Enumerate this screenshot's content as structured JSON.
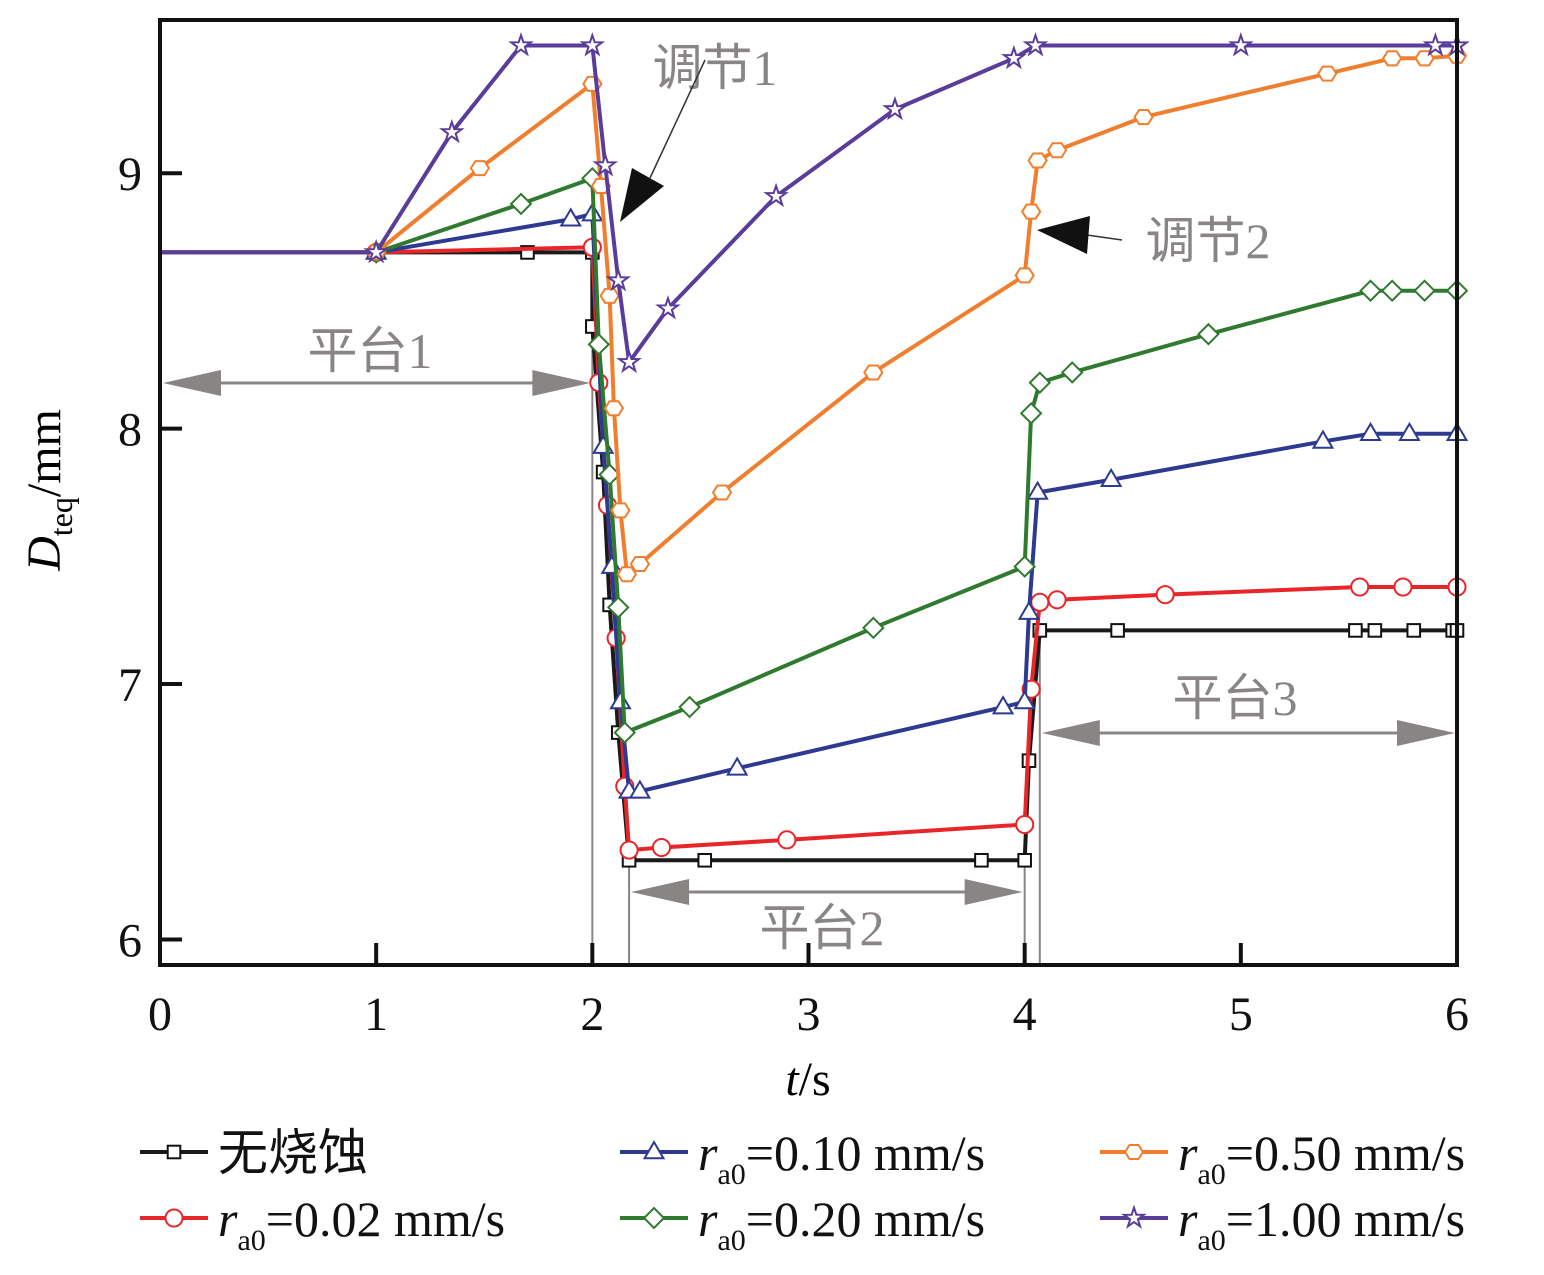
{
  "chart_data": {
    "type": "line",
    "xlabel_italic": "t",
    "xlabel_unit": "/s",
    "ylabel_main": "D",
    "ylabel_sub": "teq",
    "ylabel_unit": "/mm",
    "xlim": [
      0,
      6
    ],
    "ylim": [
      5.9,
      9.6
    ],
    "xticks": [
      "0",
      "1",
      "2",
      "3",
      "4",
      "5",
      "6"
    ],
    "yticks": [
      "6",
      "7",
      "8",
      "9"
    ],
    "grid": false,
    "legend_position": "bottom",
    "series": [
      {
        "name": "无烧蚀",
        "prefix": "",
        "sub": "",
        "value_label": "",
        "color": "#1a1a1a",
        "marker": "square",
        "points": [
          [
            0,
            8.69
          ],
          [
            1.7,
            8.69
          ],
          [
            2.0,
            8.69
          ],
          [
            2.0,
            8.4
          ],
          [
            2.05,
            7.83
          ],
          [
            2.08,
            7.31
          ],
          [
            2.12,
            6.81
          ],
          [
            2.17,
            6.31
          ],
          [
            2.52,
            6.31
          ],
          [
            3.8,
            6.31
          ],
          [
            4.0,
            6.31
          ],
          [
            4.02,
            6.7
          ],
          [
            4.07,
            7.21
          ],
          [
            4.43,
            7.21
          ],
          [
            5.53,
            7.21
          ],
          [
            5.62,
            7.21
          ],
          [
            5.8,
            7.21
          ],
          [
            5.98,
            7.21
          ],
          [
            6.0,
            7.21
          ]
        ]
      },
      {
        "name": "r_a0=0.02 mm/s",
        "prefix": "r",
        "sub": "a0",
        "value_label": "=0.02 mm/s",
        "color": "#e8262a",
        "marker": "circle",
        "points": [
          [
            0,
            8.69
          ],
          [
            1.0,
            8.69
          ],
          [
            2.0,
            8.71
          ],
          [
            2.03,
            8.18
          ],
          [
            2.07,
            7.7
          ],
          [
            2.11,
            7.18
          ],
          [
            2.15,
            6.6
          ],
          [
            2.17,
            6.35
          ],
          [
            2.32,
            6.36
          ],
          [
            2.9,
            6.39
          ],
          [
            4.0,
            6.45
          ],
          [
            4.03,
            6.98
          ],
          [
            4.07,
            7.32
          ],
          [
            4.15,
            7.33
          ],
          [
            4.65,
            7.35
          ],
          [
            5.55,
            7.38
          ],
          [
            5.75,
            7.38
          ],
          [
            6.0,
            7.38
          ]
        ]
      },
      {
        "name": "r_a0=0.10 mm/s",
        "prefix": "r",
        "sub": "a0",
        "value_label": "=0.10 mm/s",
        "color": "#2e3a92",
        "marker": "triangle",
        "points": [
          [
            0,
            8.69
          ],
          [
            1.0,
            8.69
          ],
          [
            1.9,
            8.82
          ],
          [
            2.0,
            8.84
          ],
          [
            2.05,
            7.93
          ],
          [
            2.09,
            7.46
          ],
          [
            2.13,
            6.93
          ],
          [
            2.17,
            6.58
          ],
          [
            2.22,
            6.58
          ],
          [
            2.67,
            6.67
          ],
          [
            3.9,
            6.91
          ],
          [
            4.0,
            6.93
          ],
          [
            4.02,
            7.28
          ],
          [
            4.06,
            7.75
          ],
          [
            4.4,
            7.8
          ],
          [
            5.38,
            7.95
          ],
          [
            5.6,
            7.98
          ],
          [
            5.78,
            7.98
          ],
          [
            6.0,
            7.98
          ]
        ]
      },
      {
        "name": "r_a0=0.20 mm/s",
        "prefix": "r",
        "sub": "a0",
        "value_label": "=0.20 mm/s",
        "color": "#2f7a2f",
        "marker": "diamond",
        "points": [
          [
            0,
            8.69
          ],
          [
            1.0,
            8.69
          ],
          [
            1.67,
            8.88
          ],
          [
            2.0,
            8.98
          ],
          [
            2.03,
            8.33
          ],
          [
            2.08,
            7.82
          ],
          [
            2.12,
            7.3
          ],
          [
            2.15,
            6.81
          ],
          [
            2.45,
            6.91
          ],
          [
            3.3,
            7.22
          ],
          [
            4.0,
            7.46
          ],
          [
            4.03,
            8.06
          ],
          [
            4.07,
            8.18
          ],
          [
            4.22,
            8.22
          ],
          [
            4.85,
            8.37
          ],
          [
            5.6,
            8.54
          ],
          [
            5.7,
            8.54
          ],
          [
            5.85,
            8.54
          ],
          [
            6.0,
            8.54
          ]
        ]
      },
      {
        "name": "r_a0=0.50 mm/s",
        "prefix": "r",
        "sub": "a0",
        "value_label": "=0.50 mm/s",
        "color": "#ef7f2e",
        "marker": "hexagon",
        "points": [
          [
            0,
            8.69
          ],
          [
            1.0,
            8.69
          ],
          [
            1.48,
            9.02
          ],
          [
            2.0,
            9.35
          ],
          [
            2.04,
            8.95
          ],
          [
            2.08,
            8.52
          ],
          [
            2.1,
            8.08
          ],
          [
            2.13,
            7.68
          ],
          [
            2.16,
            7.43
          ],
          [
            2.22,
            7.47
          ],
          [
            2.6,
            7.75
          ],
          [
            3.3,
            8.22
          ],
          [
            4.0,
            8.6
          ],
          [
            4.03,
            8.85
          ],
          [
            4.06,
            9.05
          ],
          [
            4.15,
            9.09
          ],
          [
            4.55,
            9.22
          ],
          [
            5.4,
            9.39
          ],
          [
            5.7,
            9.45
          ],
          [
            5.85,
            9.45
          ],
          [
            6.0,
            9.46
          ]
        ]
      },
      {
        "name": "r_a0=1.00 mm/s",
        "prefix": "r",
        "sub": "a0",
        "value_label": "=1.00 mm/s",
        "color": "#5a3d9a",
        "marker": "star",
        "points": [
          [
            0,
            8.69
          ],
          [
            1.0,
            8.69
          ],
          [
            1.35,
            9.16
          ],
          [
            1.67,
            9.5
          ],
          [
            2.0,
            9.5
          ],
          [
            2.06,
            9.03
          ],
          [
            2.12,
            8.58
          ],
          [
            2.17,
            8.26
          ],
          [
            2.35,
            8.47
          ],
          [
            2.85,
            8.91
          ],
          [
            3.4,
            9.25
          ],
          [
            3.95,
            9.45
          ],
          [
            4.05,
            9.5
          ],
          [
            5.0,
            9.5
          ],
          [
            5.9,
            9.5
          ],
          [
            6.0,
            9.5
          ]
        ]
      }
    ],
    "annotations": {
      "adjust1": "调节1",
      "adjust2": "调节2",
      "plateau1": "平台1",
      "plateau2": "平台2",
      "plateau3": "平台3"
    }
  }
}
